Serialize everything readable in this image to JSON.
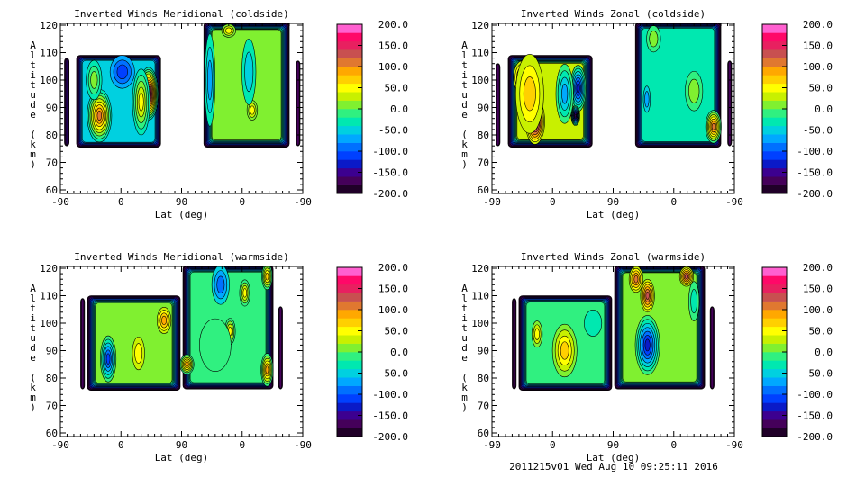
{
  "footer": "2011215v01 Wed Aug 10 09:25:11 2016",
  "colors": {
    "colormap": [
      "#200028",
      "#45005a",
      "#3c0090",
      "#0a1ac8",
      "#0040ff",
      "#0070ff",
      "#00a8ff",
      "#00d0e0",
      "#00e8b0",
      "#30f080",
      "#80f030",
      "#c8f000",
      "#ffff00",
      "#ffd000",
      "#ffa800",
      "#e07830",
      "#c85050",
      "#e82060",
      "#ff0868",
      "#ff60d0"
    ],
    "contour_line": "#000000",
    "background": "#ffffff"
  },
  "chart_data": [
    {
      "type": "heatmap",
      "subtype": "filled-contour",
      "title": "Inverted Winds Meridional (coldside)",
      "xlabel": "Lat (deg)",
      "ylabel": "Altitude (km)",
      "xticks": [
        "-90",
        "0",
        "90",
        "0",
        "-90"
      ],
      "yticks": [
        "60",
        "70",
        "80",
        "90",
        "100",
        "110",
        "120"
      ],
      "ylim": [
        60,
        120
      ],
      "colorbar": {
        "ticks": [
          "200.0",
          "150.0",
          "100.0",
          "50.0",
          "0.0",
          "-50.0",
          "-100.0",
          "-150.0",
          "-200.0"
        ],
        "range": [
          -200,
          200
        ],
        "levels": 20
      },
      "grid": false
    },
    {
      "type": "heatmap",
      "subtype": "filled-contour",
      "title": "Inverted Winds Zonal (coldside)",
      "xlabel": "Lat (deg)",
      "ylabel": "Altitude (km)",
      "xticks": [
        "-90",
        "0",
        "90",
        "0",
        "-90"
      ],
      "yticks": [
        "60",
        "70",
        "80",
        "90",
        "100",
        "110",
        "120"
      ],
      "ylim": [
        60,
        120
      ],
      "colorbar": {
        "ticks": [
          "200.0",
          "150.0",
          "100.0",
          "50.0",
          "0.0",
          "-50.0",
          "-100.0",
          "-150.0",
          "-200.0"
        ],
        "range": [
          -200,
          200
        ],
        "levels": 20
      },
      "grid": false
    },
    {
      "type": "heatmap",
      "subtype": "filled-contour",
      "title": "Inverted Winds Meridional (warmside)",
      "xlabel": "Lat (deg)",
      "ylabel": "Altitude (km)",
      "xticks": [
        "-90",
        "0",
        "90",
        "0",
        "-90"
      ],
      "yticks": [
        "60",
        "70",
        "80",
        "90",
        "100",
        "110",
        "120"
      ],
      "ylim": [
        60,
        120
      ],
      "colorbar": {
        "ticks": [
          "200.0",
          "150.0",
          "100.0",
          "50.0",
          "0.0",
          "-50.0",
          "-100.0",
          "-150.0",
          "-200.0"
        ],
        "range": [
          -200,
          200
        ],
        "levels": 20
      },
      "grid": false
    },
    {
      "type": "heatmap",
      "subtype": "filled-contour",
      "title": "Inverted Winds Zonal (warmside)",
      "xlabel": "Lat (deg)",
      "ylabel": "Altitude (km)",
      "xticks": [
        "-90",
        "0",
        "90",
        "0",
        "-90"
      ],
      "yticks": [
        "60",
        "70",
        "80",
        "90",
        "100",
        "110",
        "120"
      ],
      "ylim": [
        60,
        120
      ],
      "colorbar": {
        "ticks": [
          "200.0",
          "150.0",
          "100.0",
          "50.0",
          "0.0",
          "-50.0",
          "-100.0",
          "-150.0",
          "-200.0"
        ],
        "range": [
          -200,
          200
        ],
        "levels": 20
      },
      "grid": false
    }
  ]
}
